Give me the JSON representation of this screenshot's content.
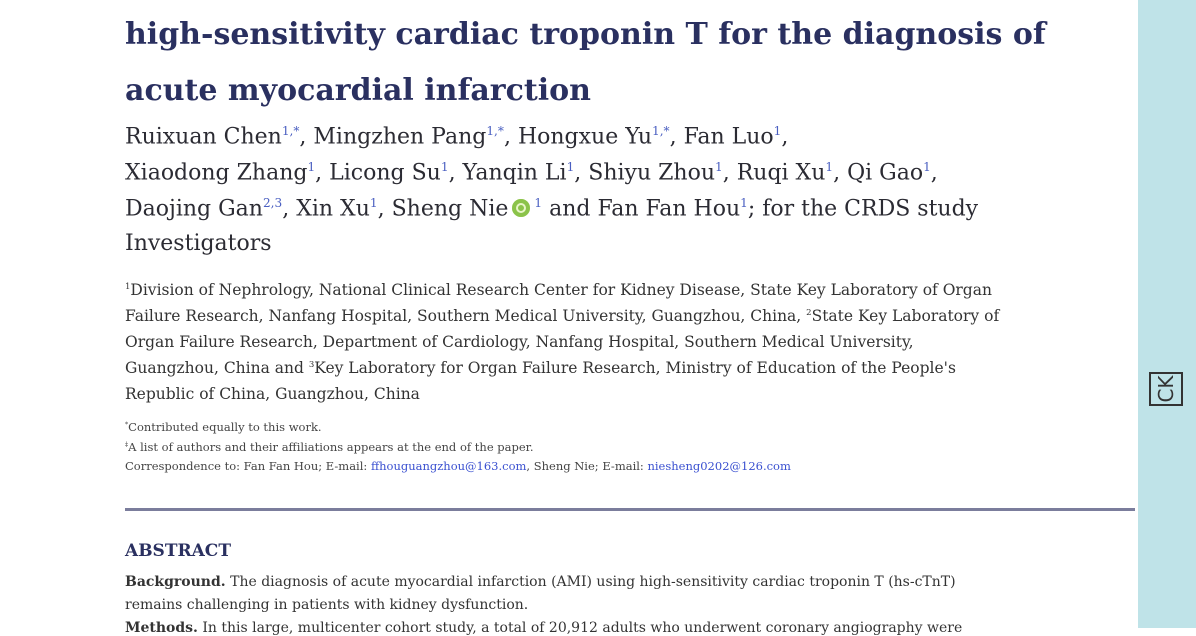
{
  "title_lines": [
    "high-sensitivity cardiac troponin T for the diagnosis of",
    "acute myocardial infarction"
  ],
  "author_lines": [
    [
      {
        "text": "Ruixuan Chen"
      },
      {
        "text": "1,*",
        "sup": true
      },
      {
        "text": ", Mingzhen Pang"
      },
      {
        "text": "1,*",
        "sup": true
      },
      {
        "text": ", Hongxue Yu"
      },
      {
        "text": "1,*",
        "sup": true
      },
      {
        "text": ", Fan Luo"
      },
      {
        "text": "1",
        "sup": true
      },
      {
        "text": ","
      }
    ],
    [
      {
        "text": "Xiaodong Zhang"
      },
      {
        "text": "1",
        "sup": true
      },
      {
        "text": ", Licong Su"
      },
      {
        "text": "1",
        "sup": true
      },
      {
        "text": ", Yanqin Li"
      },
      {
        "text": "1",
        "sup": true
      },
      {
        "text": ", Shiyu Zhou"
      },
      {
        "text": "1",
        "sup": true
      },
      {
        "text": ", Ruqi Xu"
      },
      {
        "text": "1",
        "sup": true
      },
      {
        "text": ", Qi Gao"
      },
      {
        "text": "1",
        "sup": true
      },
      {
        "text": ","
      }
    ],
    [
      {
        "text": "Daojing Gan"
      },
      {
        "text": "2,3",
        "sup": true
      },
      {
        "text": ", Xin Xu"
      },
      {
        "text": "1",
        "sup": true
      },
      {
        "text": ", Sheng Nie",
        "orcid": true
      },
      {
        "text": "1",
        "sup": true
      },
      {
        "text": "  and Fan Fan Hou"
      },
      {
        "text": "1",
        "sup": true
      },
      {
        "text": "; for the CRDS study"
      }
    ],
    [
      {
        "text": "Investigators"
      }
    ]
  ],
  "affiliation_lines": [
    [
      {
        "text": "1",
        "sup": true
      },
      {
        "text": "Division of Nephrology, National Clinical Research Center for Kidney Disease, State Key Laboratory of Organ"
      }
    ],
    [
      {
        "text": "Failure Research, Nanfang Hospital, Southern Medical University, Guangzhou, China, "
      },
      {
        "text": "2",
        "sup": true
      },
      {
        "text": "State Key Laboratory of"
      }
    ],
    [
      {
        "text": "Organ Failure Research, Department of Cardiology, Nanfang Hospital, Southern Medical University,"
      }
    ],
    [
      {
        "text": "Guangzhou, China and "
      },
      {
        "text": "3",
        "sup": true
      },
      {
        "text": "Key Laboratory for Organ Failure Research, Ministry of Education of the People's"
      }
    ],
    [
      {
        "text": "Republic of China, Guangzhou, China"
      }
    ]
  ],
  "footnotes": [
    [
      {
        "text": "*",
        "sup": true
      },
      {
        "text": "Contributed equally to this work."
      }
    ],
    [
      {
        "text": "‡",
        "sup": true
      },
      {
        "text": "A list of authors and their affiliations appears at the end of the paper."
      }
    ],
    [
      {
        "text": "Correspondence to: Fan Fan Hou; E-mail: "
      },
      {
        "text": "ffhouguangzhou@163.com",
        "link": true
      },
      {
        "text": ", Sheng Nie; E-mail: "
      },
      {
        "text": "niesheng0202@126.com",
        "link": true
      }
    ]
  ],
  "abstract": {
    "heading": "ABSTRACT",
    "lines": [
      [
        {
          "text": "Background.",
          "bold": true
        },
        {
          "text": "  The diagnosis of acute myocardial infarction (AMI) using high-sensitivity cardiac troponin T (hs-cTnT)"
        }
      ],
      [
        {
          "text": "remains challenging in patients with kidney dysfunction."
        }
      ],
      [
        {
          "text": "Methods.",
          "bold": true
        },
        {
          "text": "  In this large, multicenter cohort study, a total of 20,912 adults who underwent coronary angiography were"
        }
      ]
    ]
  },
  "side_icon": "CK"
}
